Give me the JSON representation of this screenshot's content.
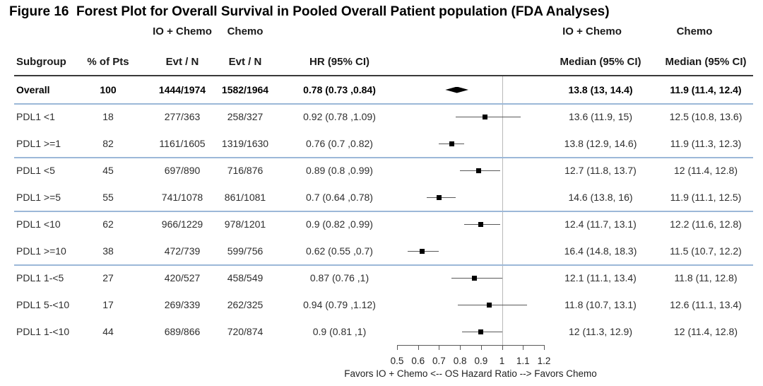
{
  "title": "Figure 16  Forest Plot for Overall Survival in Pooled Overall Patient population (FDA Analyses)",
  "arm_labels": {
    "io": "IO + Chemo",
    "chemo": "Chemo"
  },
  "columns": {
    "subgroup": "Subgroup",
    "pct": "% of Pts",
    "io_evt": "Evt / N",
    "chemo_evt": "Evt / N",
    "hr": "HR (95% CI)",
    "io_median": "Median (95% CI)",
    "chemo_median": "Median (95% CI)"
  },
  "rows": [
    {
      "subgroup": "Overall",
      "pct": "100",
      "io_evt": "1444/1974",
      "chemo_evt": "1582/1964",
      "hr_text": "0.78 (0.73 ,0.84)",
      "hr": 0.78,
      "lo": 0.73,
      "hi": 0.84,
      "io_median": "13.8 (13, 14.4)",
      "chemo_median": "11.9 (11.4, 12.4)",
      "marker": "diamond",
      "bold": true,
      "sep_after": true
    },
    {
      "subgroup": "PDL1 <1",
      "pct": "18",
      "io_evt": "277/363",
      "chemo_evt": "258/327",
      "hr_text": "0.92 (0.78 ,1.09)",
      "hr": 0.92,
      "lo": 0.78,
      "hi": 1.09,
      "io_median": "13.6 (11.9, 15)",
      "chemo_median": "12.5 (10.8, 13.6)",
      "marker": "square",
      "bold": false,
      "sep_after": false
    },
    {
      "subgroup": "PDL1 >=1",
      "pct": "82",
      "io_evt": "1161/1605",
      "chemo_evt": "1319/1630",
      "hr_text": "0.76 (0.7 ,0.82)",
      "hr": 0.76,
      "lo": 0.7,
      "hi": 0.82,
      "io_median": "13.8 (12.9, 14.6)",
      "chemo_median": "11.9 (11.3, 12.3)",
      "marker": "square",
      "bold": false,
      "sep_after": true
    },
    {
      "subgroup": "PDL1 <5",
      "pct": "45",
      "io_evt": "697/890",
      "chemo_evt": "716/876",
      "hr_text": "0.89 (0.8 ,0.99)",
      "hr": 0.89,
      "lo": 0.8,
      "hi": 0.99,
      "io_median": "12.7 (11.8, 13.7)",
      "chemo_median": "12 (11.4, 12.8)",
      "marker": "square",
      "bold": false,
      "sep_after": false
    },
    {
      "subgroup": "PDL1 >=5",
      "pct": "55",
      "io_evt": "741/1078",
      "chemo_evt": "861/1081",
      "hr_text": "0.7 (0.64 ,0.78)",
      "hr": 0.7,
      "lo": 0.64,
      "hi": 0.78,
      "io_median": "14.6 (13.8, 16)",
      "chemo_median": "11.9 (11.1, 12.5)",
      "marker": "square",
      "bold": false,
      "sep_after": true
    },
    {
      "subgroup": "PDL1 <10",
      "pct": "62",
      "io_evt": "966/1229",
      "chemo_evt": "978/1201",
      "hr_text": "0.9 (0.82 ,0.99)",
      "hr": 0.9,
      "lo": 0.82,
      "hi": 0.99,
      "io_median": "12.4 (11.7, 13.1)",
      "chemo_median": "12.2 (11.6, 12.8)",
      "marker": "square",
      "bold": false,
      "sep_after": false
    },
    {
      "subgroup": "PDL1 >=10",
      "pct": "38",
      "io_evt": "472/739",
      "chemo_evt": "599/756",
      "hr_text": "0.62 (0.55 ,0.7)",
      "hr": 0.62,
      "lo": 0.55,
      "hi": 0.7,
      "io_median": "16.4 (14.8, 18.3)",
      "chemo_median": "11.5 (10.7, 12.2)",
      "marker": "square",
      "bold": false,
      "sep_after": true
    },
    {
      "subgroup": "PDL1 1-<5",
      "pct": "27",
      "io_evt": "420/527",
      "chemo_evt": "458/549",
      "hr_text": "0.87 (0.76 ,1)",
      "hr": 0.87,
      "lo": 0.76,
      "hi": 1.0,
      "io_median": "12.1 (11.1, 13.4)",
      "chemo_median": "11.8 (11, 12.8)",
      "marker": "square",
      "bold": false,
      "sep_after": false
    },
    {
      "subgroup": "PDL1 5-<10",
      "pct": "17",
      "io_evt": "269/339",
      "chemo_evt": "262/325",
      "hr_text": "0.94 (0.79 ,1.12)",
      "hr": 0.94,
      "lo": 0.79,
      "hi": 1.12,
      "io_median": "11.8 (10.7, 13.1)",
      "chemo_median": "12.6 (11.1, 13.4)",
      "marker": "square",
      "bold": false,
      "sep_after": false
    },
    {
      "subgroup": "PDL1 1-<10",
      "pct": "44",
      "io_evt": "689/866",
      "chemo_evt": "720/874",
      "hr_text": "0.9 (0.81 ,1)",
      "hr": 0.9,
      "lo": 0.81,
      "hi": 1.0,
      "io_median": "12 (11.3, 12.9)",
      "chemo_median": "12 (11.4, 12.8)",
      "marker": "square",
      "bold": false,
      "sep_after": false
    }
  ],
  "axis": {
    "ticks": [
      "0.5",
      "0.6",
      "0.7",
      "0.8",
      "0.9",
      "1",
      "1.1",
      "1.2"
    ],
    "label": "Favors IO + Chemo <-- OS Hazard Ratio --> Favors Chemo",
    "refline": 1
  },
  "chart_data": {
    "type": "scatter",
    "variant": "forest-plot",
    "title": "Figure 16  Forest Plot for Overall Survival in Pooled Overall Patient population (FDA Analyses)",
    "xlabel": "Favors IO + Chemo <-- OS Hazard Ratio --> Favors Chemo",
    "xlim": [
      0.5,
      1.2
    ],
    "xticks": [
      0.5,
      0.6,
      0.7,
      0.8,
      0.9,
      1,
      1.1,
      1.2
    ],
    "reference_line_x": 1,
    "grid": false,
    "series": [
      {
        "name": "Overall",
        "hr": 0.78,
        "ci": [
          0.73,
          0.84
        ],
        "marker": "diamond"
      },
      {
        "name": "PDL1 <1",
        "hr": 0.92,
        "ci": [
          0.78,
          1.09
        ],
        "marker": "square"
      },
      {
        "name": "PDL1 >=1",
        "hr": 0.76,
        "ci": [
          0.7,
          0.82
        ],
        "marker": "square"
      },
      {
        "name": "PDL1 <5",
        "hr": 0.89,
        "ci": [
          0.8,
          0.99
        ],
        "marker": "square"
      },
      {
        "name": "PDL1 >=5",
        "hr": 0.7,
        "ci": [
          0.64,
          0.78
        ],
        "marker": "square"
      },
      {
        "name": "PDL1 <10",
        "hr": 0.9,
        "ci": [
          0.82,
          0.99
        ],
        "marker": "square"
      },
      {
        "name": "PDL1 >=10",
        "hr": 0.62,
        "ci": [
          0.55,
          0.7
        ],
        "marker": "square"
      },
      {
        "name": "PDL1 1-<5",
        "hr": 0.87,
        "ci": [
          0.76,
          1.0
        ],
        "marker": "square"
      },
      {
        "name": "PDL1 5-<10",
        "hr": 0.94,
        "ci": [
          0.79,
          1.12
        ],
        "marker": "square"
      },
      {
        "name": "PDL1 1-<10",
        "hr": 0.9,
        "ci": [
          0.81,
          1.0
        ],
        "marker": "square"
      }
    ]
  },
  "colors": {
    "separator_blue": "#9cb8d8",
    "header_rule": "#3a3a3a",
    "reference_line": "#b8b8b8",
    "marker": "#000000",
    "ci_line": "#595959"
  }
}
